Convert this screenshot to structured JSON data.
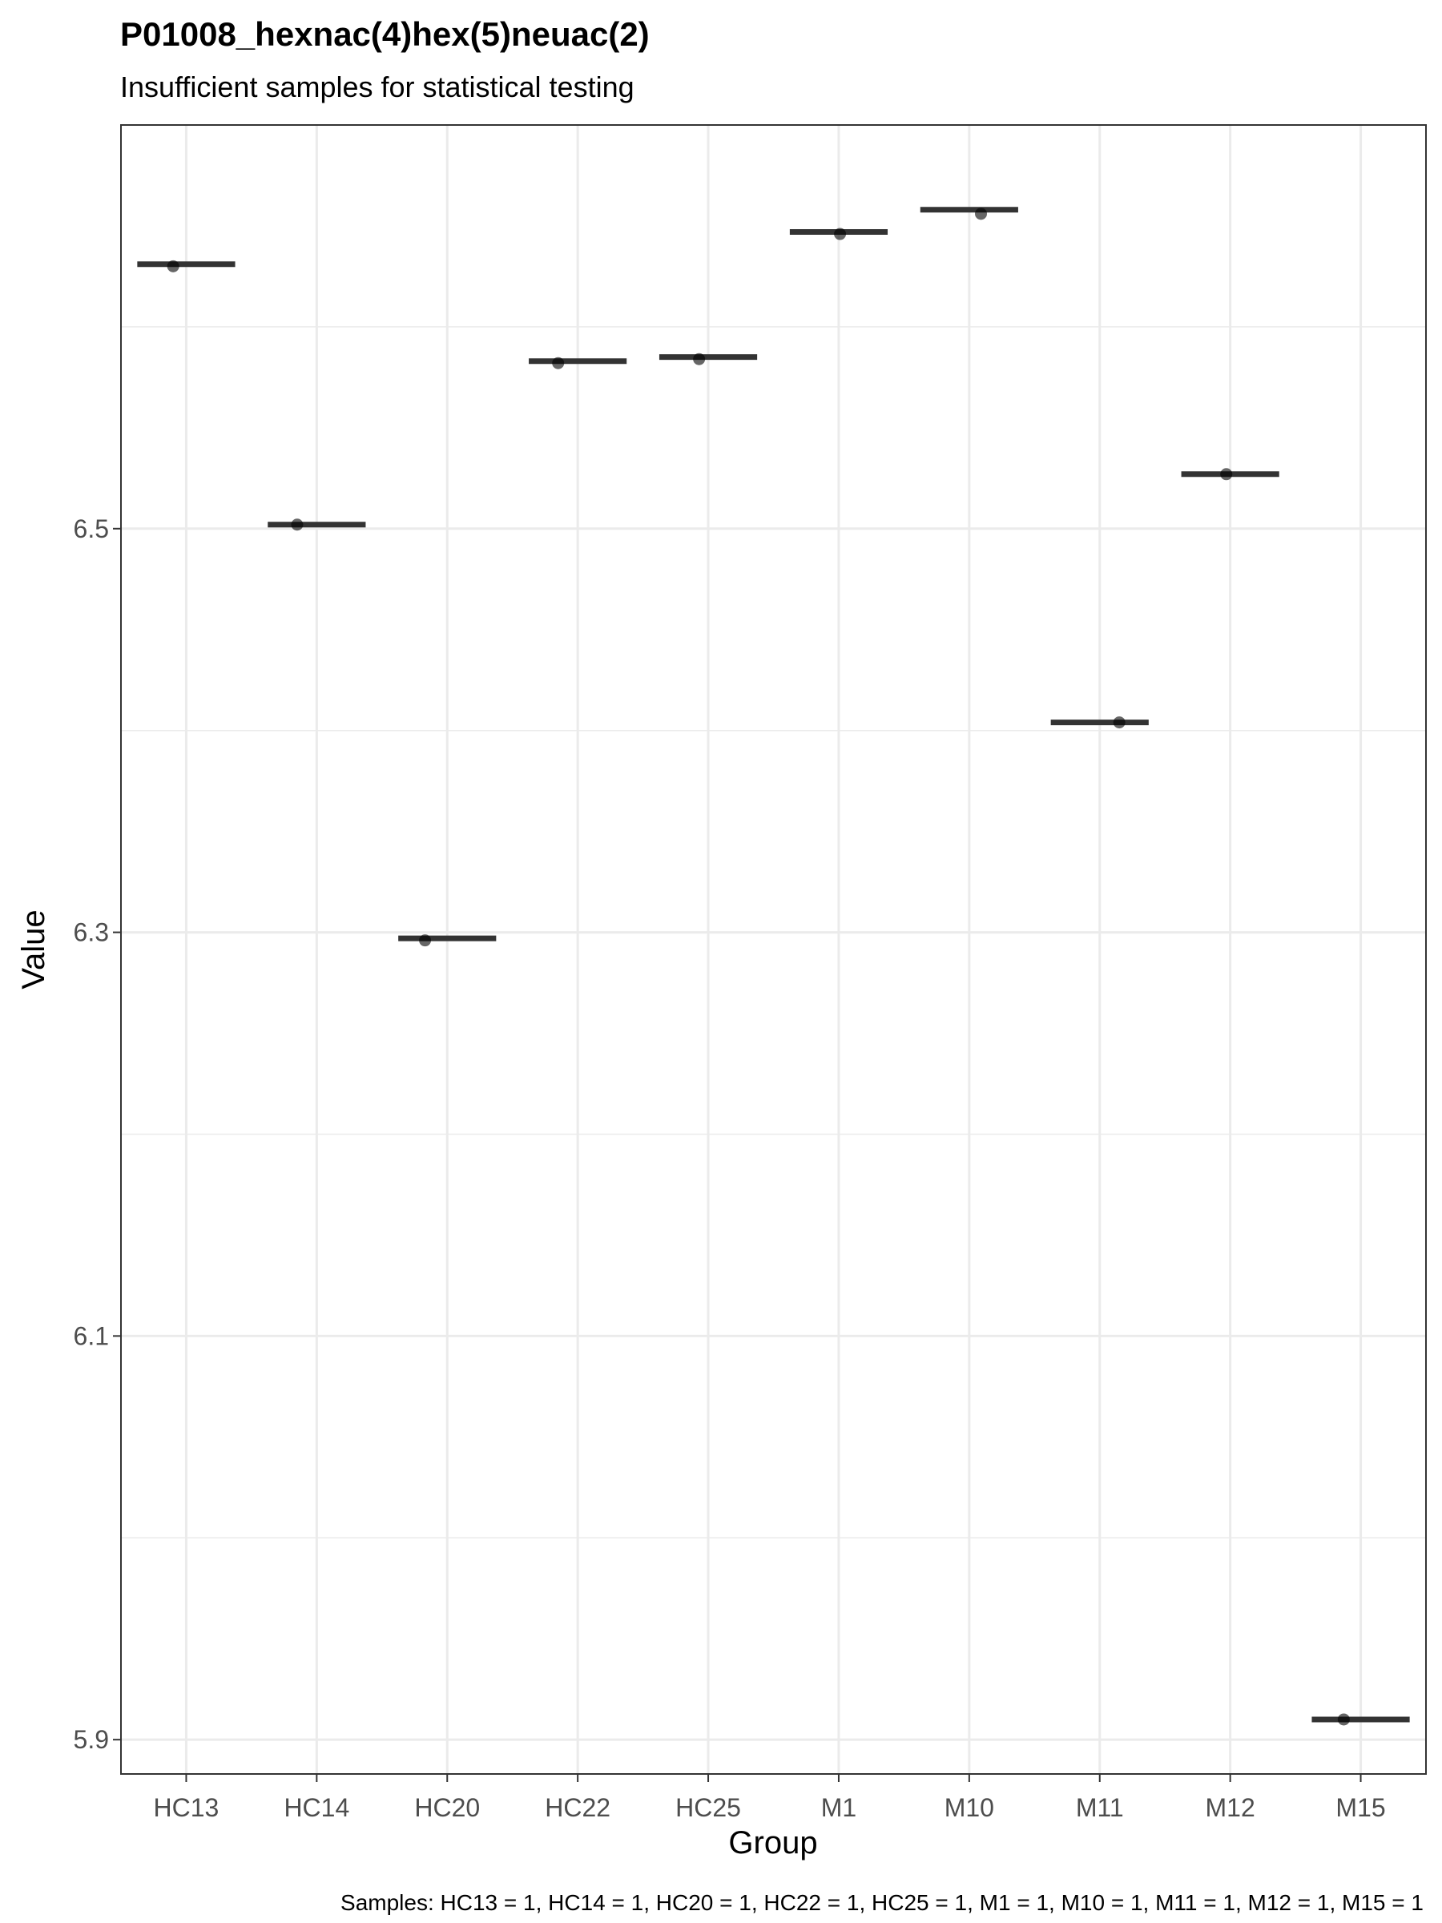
{
  "chart_data": {
    "type": "boxplot",
    "title": "P01008_hexnac(4)hex(5)neuac(2)",
    "subtitle": "Insufficient samples for statistical testing",
    "xlabel": "Group",
    "ylabel": "Value",
    "categories": [
      "HC13",
      "HC14",
      "HC20",
      "HC22",
      "HC25",
      "M1",
      "M10",
      "M11",
      "M12",
      "M15"
    ],
    "medians": [
      6.631,
      6.502,
      6.297,
      6.583,
      6.585,
      6.647,
      6.658,
      6.404,
      6.527,
      5.91
    ],
    "points": [
      {
        "x": "HC13",
        "y": 6.63
      },
      {
        "x": "HC14",
        "y": 6.502
      },
      {
        "x": "HC20",
        "y": 6.296
      },
      {
        "x": "HC22",
        "y": 6.582
      },
      {
        "x": "HC25",
        "y": 6.584
      },
      {
        "x": "M1",
        "y": 6.646
      },
      {
        "x": "M10",
        "y": 6.656
      },
      {
        "x": "M11",
        "y": 6.404
      },
      {
        "x": "M12",
        "y": 6.527
      },
      {
        "x": "M15",
        "y": 5.91
      }
    ],
    "point_offsets": [
      -0.1,
      -0.15,
      -0.17,
      -0.15,
      -0.07,
      0.01,
      0.09,
      0.15,
      -0.03,
      -0.13
    ],
    "yticks": [
      5.9,
      6.1,
      6.3,
      6.5
    ],
    "ylim": [
      5.883,
      6.7
    ],
    "grid": true,
    "caption": "Samples: HC13 = 1, HC14 = 1, HC20 = 1, HC22 = 1, HC25 = 1, M1 = 1, M10 = 1, M11 = 1, M12 = 1, M15 = 1",
    "colors": {
      "median": "#333333",
      "point": "#000000",
      "grid": "#ebebeb",
      "panel_border": "#333333",
      "tick_label": "#4d4d4d"
    }
  }
}
